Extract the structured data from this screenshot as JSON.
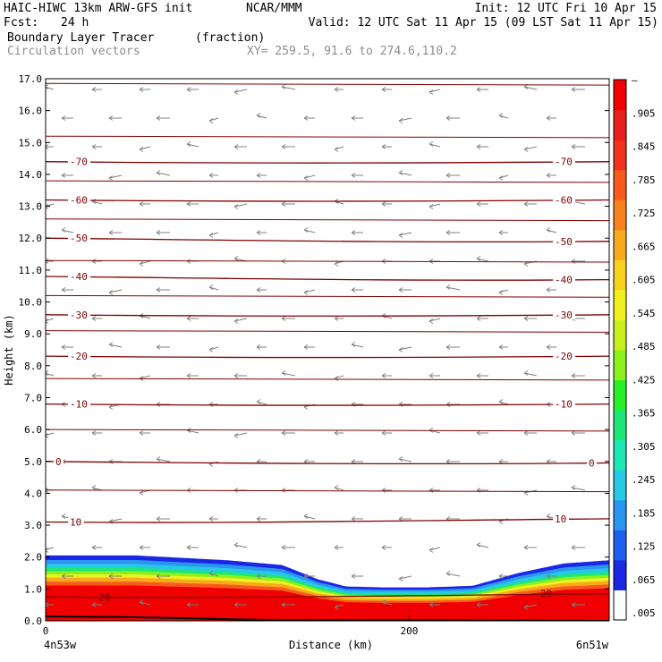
{
  "header": {
    "model": "HAIC-HIWC 13km ARW-GFS init",
    "org": "NCAR/MMM",
    "init": "Init: 12 UTC Fri 10 Apr 15",
    "fcst_label": "Fcst:",
    "fcst_value": "24 h",
    "valid": "Valid: 12 UTC Sat 11 Apr 15 (09 LST Sat 11 Apr 15)",
    "field": "Boundary Layer Tracer",
    "units": "(fraction)",
    "overlay": "Circulation vectors",
    "xy": "XY= 259.5, 91.6 to 274.6,110.2"
  },
  "chart_data": {
    "type": "heatmap",
    "title": "Boundary Layer Tracer (fraction)",
    "xlabel": "Distance (km)",
    "ylabel": "Height (km)",
    "xlim": [
      0,
      310
    ],
    "ylim": [
      0,
      17
    ],
    "x_ticks": [
      0,
      200
    ],
    "x_end_labels": [
      "4n53w",
      "6n51w"
    ],
    "y_ticks": [
      "0.0",
      "1.0",
      "2.0",
      "3.0",
      "4.0",
      "5.0",
      "6.0",
      "7.0",
      "8.0",
      "9.0",
      "10.0",
      "11.0",
      "12.0",
      "13.0",
      "14.0",
      "15.0",
      "16.0",
      "17.0"
    ],
    "colorbar_labels": [
      ".005",
      ".065",
      ".125",
      ".185",
      ".245",
      ".305",
      ".365",
      ".425",
      ".485",
      ".545",
      ".605",
      ".665",
      ".725",
      ".785",
      ".845",
      ".905",
      "–"
    ],
    "colorbar_colors": [
      "#ffffff",
      "#1a28e6",
      "#1e5ff0",
      "#2a96f0",
      "#26c8e6",
      "#1ee6b4",
      "#1ee678",
      "#28f028",
      "#8cf01e",
      "#c8f01e",
      "#f0f01e",
      "#f8d21e",
      "#f8aa1e",
      "#f8821e",
      "#f85a1e",
      "#f0321e",
      "#e61e1e",
      "#f00000"
    ],
    "tracer_top_km": [
      {
        "x": 0,
        "z": 2.05
      },
      {
        "x": 50,
        "z": 2.05
      },
      {
        "x": 100,
        "z": 1.9
      },
      {
        "x": 130,
        "z": 1.75
      },
      {
        "x": 150,
        "z": 1.3
      },
      {
        "x": 165,
        "z": 1.08
      },
      {
        "x": 185,
        "z": 1.05
      },
      {
        "x": 210,
        "z": 1.05
      },
      {
        "x": 235,
        "z": 1.1
      },
      {
        "x": 260,
        "z": 1.5
      },
      {
        "x": 285,
        "z": 1.8
      },
      {
        "x": 310,
        "z": 1.9
      }
    ],
    "temperature_contours": [
      {
        "label": "-70",
        "z_left": 14.4,
        "z_right": 14.4
      },
      {
        "label": "-60",
        "z_left": 13.2,
        "z_right": 13.2
      },
      {
        "label": "-50",
        "z_left": 12.0,
        "z_right": 11.9
      },
      {
        "label": "-40",
        "z_left": 10.8,
        "z_right": 10.7
      },
      {
        "label": "-30",
        "z_left": 9.6,
        "z_right": 9.6
      },
      {
        "label": "-20",
        "z_left": 8.3,
        "z_right": 8.3
      },
      {
        "label": "-10",
        "z_left": 6.8,
        "z_right": 6.8
      },
      {
        "label": "0",
        "z_left": 5.0,
        "z_right": 4.95
      },
      {
        "label": "10",
        "z_left": 3.1,
        "z_right": 3.2
      },
      {
        "label": "20",
        "z_left": 0.75,
        "z_right": 0.85
      }
    ],
    "other_contour_heights_km": [
      16.85,
      15.2,
      13.8,
      12.6,
      11.3,
      10.2,
      9.1,
      7.6,
      6.0,
      4.1
    ]
  }
}
